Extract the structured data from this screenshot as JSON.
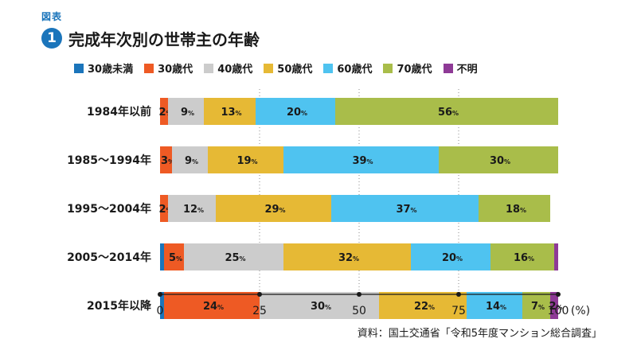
{
  "header": {
    "fig_label": "図表",
    "fig_number": "1",
    "title": "完成年次別の世帯主の年齢"
  },
  "source": "資料：国土交通省「令和5年度マンション総合調査」",
  "chart_data": {
    "type": "bar",
    "orientation": "horizontal",
    "stacked": true,
    "title": "完成年次別の世帯主の年齢",
    "categories": [
      "1984年以前",
      "1985～1994年",
      "1995～2004年",
      "2005～2014年",
      "2015年以降"
    ],
    "series": [
      {
        "name": "30歳未満",
        "color": "#1b75bb",
        "values": [
          0,
          0,
          0,
          1,
          1
        ],
        "labels": [
          "",
          "",
          "",
          "",
          ""
        ]
      },
      {
        "name": "30歳代",
        "color": "#ee5a24",
        "values": [
          2,
          3,
          2,
          5,
          24
        ],
        "labels": [
          "2",
          "3",
          "2",
          "5",
          "24"
        ]
      },
      {
        "name": "40歳代",
        "color": "#cccccc",
        "values": [
          9,
          9,
          12,
          25,
          30
        ],
        "labels": [
          "9",
          "9",
          "12",
          "25",
          "30"
        ]
      },
      {
        "name": "50歳代",
        "color": "#e6b935",
        "values": [
          13,
          19,
          29,
          32,
          22
        ],
        "labels": [
          "13",
          "19",
          "29",
          "32",
          "22"
        ]
      },
      {
        "name": "60歳代",
        "color": "#4fc3f0",
        "values": [
          20,
          39,
          37,
          20,
          14
        ],
        "labels": [
          "20",
          "39",
          "37",
          "20",
          "14"
        ]
      },
      {
        "name": "70歳代",
        "color": "#a9bd4a",
        "values": [
          56,
          30,
          18,
          16,
          7
        ],
        "labels": [
          "56",
          "30",
          "18",
          "16",
          "7"
        ]
      },
      {
        "name": "不明",
        "color": "#8e3a96",
        "values": [
          0,
          0,
          0,
          1,
          2
        ],
        "labels": [
          "",
          "",
          "",
          "",
          "2"
        ]
      }
    ],
    "value_unit": "%",
    "xlim": [
      0,
      100
    ],
    "xticks": [
      "0",
      "25",
      "50",
      "75",
      "100"
    ],
    "xlabel_unit": "(%)",
    "grid": true,
    "legend_position": "top"
  }
}
